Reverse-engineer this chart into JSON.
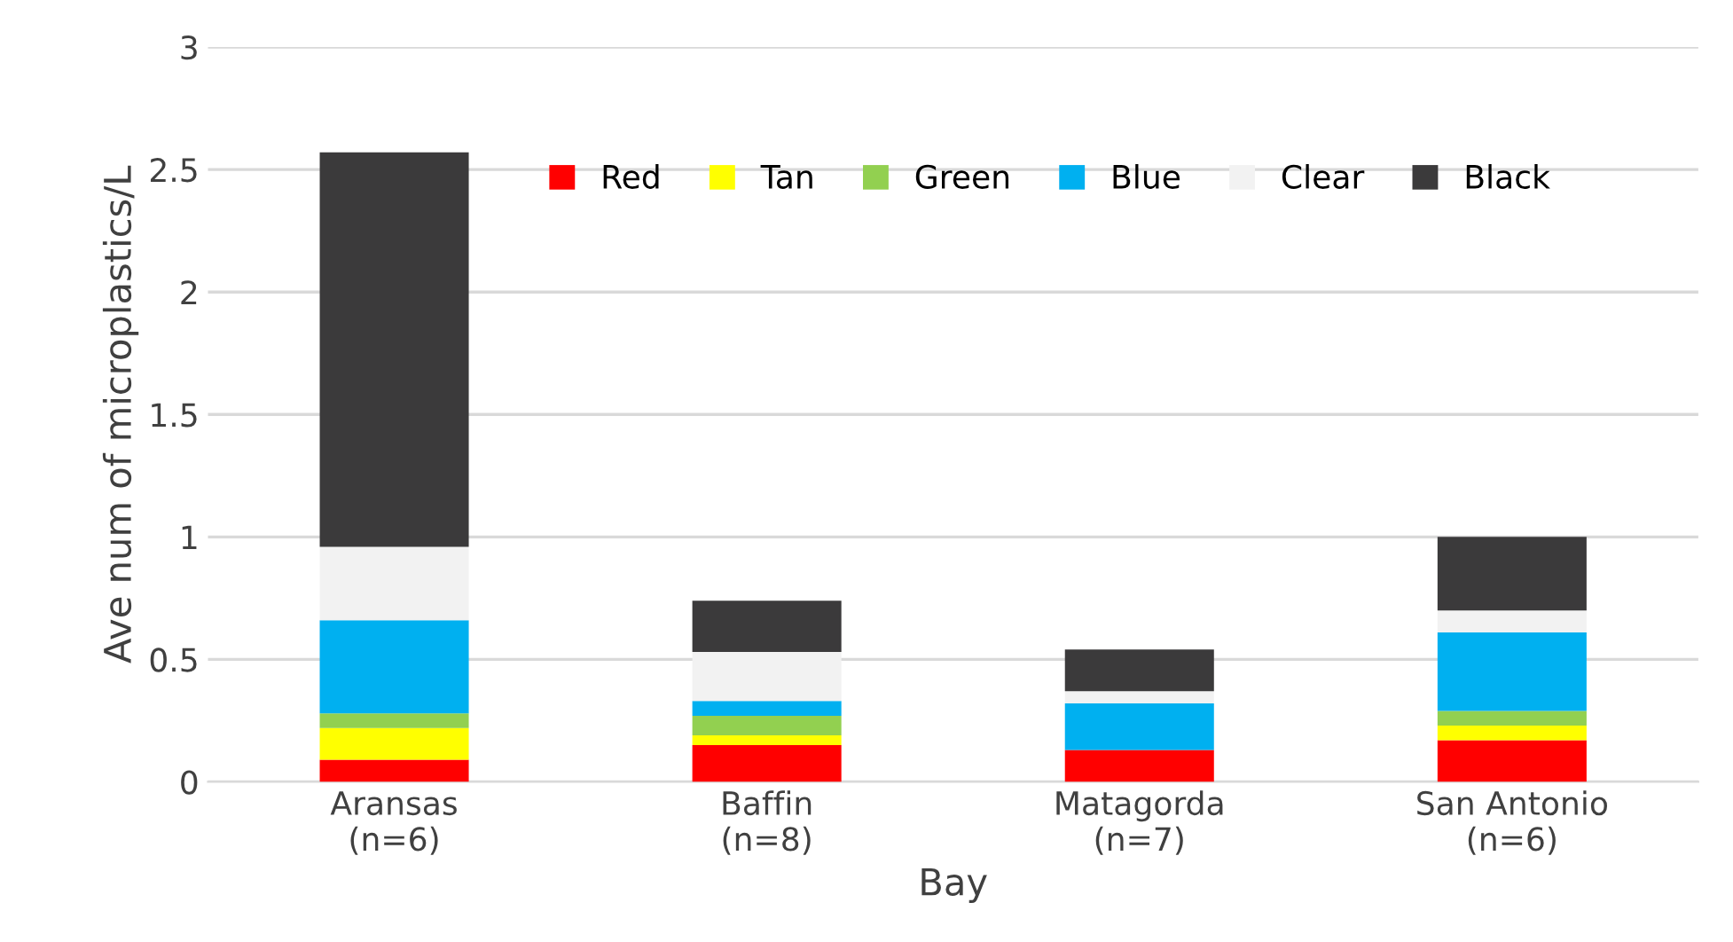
{
  "chart_data": {
    "type": "bar",
    "stacked": true,
    "xlabel": "Bay",
    "ylabel": "Ave num of microplastics/L",
    "categories": [
      "Aransas\n(n=6)",
      "Baffin\n(n=8)",
      "Matagorda\n(n=7)",
      "San Antonio\n(n=6)"
    ],
    "series": [
      {
        "name": "Red",
        "color": "#ff0000",
        "values": [
          0.09,
          0.15,
          0.13,
          0.17
        ]
      },
      {
        "name": "Tan",
        "color": "#ffff00",
        "values": [
          0.13,
          0.04,
          0,
          0.06
        ]
      },
      {
        "name": "Green",
        "color": "#92d050",
        "values": [
          0.06,
          0.08,
          0,
          0.06
        ]
      },
      {
        "name": "Blue",
        "color": "#00b0f0",
        "values": [
          0.38,
          0.06,
          0.19,
          0.32
        ]
      },
      {
        "name": "Clear",
        "color": "#f2f2f2",
        "values": [
          0.3,
          0.2,
          0.05,
          0.09
        ]
      },
      {
        "name": "Black",
        "color": "#3b3a3b",
        "values": [
          1.61,
          0.21,
          0.17,
          0.3
        ]
      }
    ],
    "ylim": [
      0,
      3
    ],
    "yticks": [
      0,
      0.5,
      1,
      1.5,
      2,
      2.5,
      3
    ],
    "grid": "y",
    "legend": "top right"
  }
}
